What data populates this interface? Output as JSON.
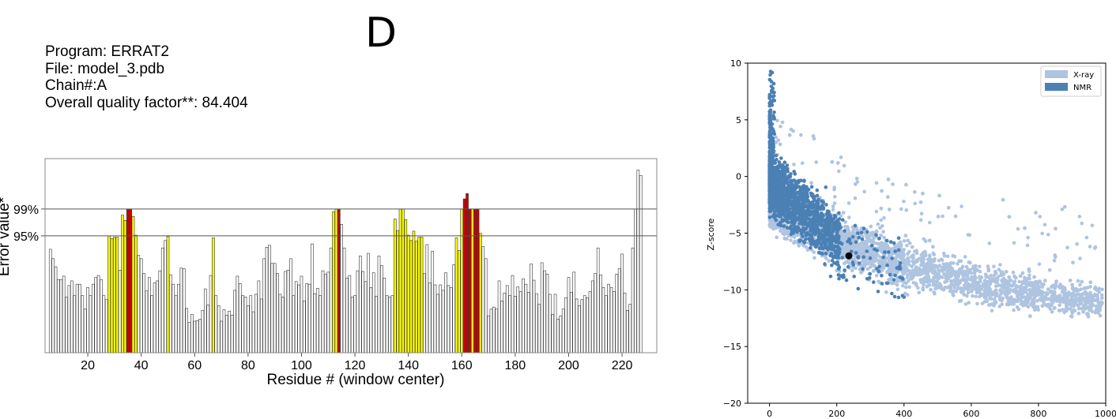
{
  "panel_label": "D",
  "info": {
    "program": "Program: ERRAT2",
    "file": "File: model_3.pdb",
    "chain": "Chain#:A",
    "quality": "Overall quality factor**: 84.404"
  },
  "colors": {
    "white_bar": "#ffffff",
    "yellow_bar": "#ffff00",
    "red_bar": "#cc0000",
    "xray": "#aec4e1",
    "nmr": "#4a80b4",
    "point": "#000000"
  },
  "chart_data": [
    {
      "type": "bar",
      "xlabel": "Residue # (window center)",
      "ylabel": "Error value*",
      "x_ticks": [
        20,
        40,
        60,
        80,
        100,
        120,
        140,
        160,
        180,
        200,
        220
      ],
      "xlim": [
        4,
        233
      ],
      "y_ticks": [
        {
          "label": "95%",
          "value": 95
        },
        {
          "label": "99%",
          "value": 99
        }
      ],
      "ylim": [
        77.6,
        106.5
      ],
      "reference_lines": [
        95,
        99
      ],
      "categories_start": 6,
      "values": [
        93.0,
        91.6,
        90.4,
        88.5,
        88.5,
        89.0,
        85.9,
        87.6,
        88.3,
        86.1,
        87.8,
        87.8,
        86.1,
        84.1,
        87.3,
        86.1,
        87.8,
        88.8,
        89.1,
        88.5,
        86.1,
        85.5,
        95.0,
        94.6,
        94.8,
        94.8,
        89.9,
        98.1,
        97.3,
        99.0,
        99.0,
        97.9,
        95.1,
        92.1,
        91.6,
        89.4,
        86.8,
        88.8,
        86.1,
        88.0,
        88.3,
        89.8,
        93.2,
        94.3,
        94.9,
        89.2,
        87.8,
        86.1,
        87.8,
        90.2,
        90.1,
        84.2,
        82.1,
        83.3,
        82.3,
        82.4,
        82.6,
        83.9,
        87.1,
        84.7,
        89.1,
        94.7,
        86.1,
        84.6,
        82.3,
        84.0,
        83.2,
        83.8,
        83.2,
        86.9,
        89.0,
        87.9,
        86.1,
        85.9,
        84.6,
        86.1,
        83.7,
        86.3,
        88.3,
        85.6,
        91.6,
        93.3,
        93.6,
        90.9,
        90.9,
        89.4,
        86.3,
        85.9,
        89.7,
        89.9,
        91.6,
        86.1,
        88.2,
        87.7,
        89.0,
        85.3,
        87.9,
        87.8,
        93.8,
        86.4,
        87.2,
        86.1,
        89.8,
        89.3,
        89.6,
        93.2,
        98.6,
        99.0,
        99.0,
        96.7,
        93.2,
        88.7,
        89.1,
        85.9,
        86.1,
        89.8,
        92.0,
        89.7,
        88.2,
        92.4,
        87.3,
        89.5,
        86.0,
        92.0,
        90.6,
        88.7,
        86.1,
        85.9,
        86.1,
        97.5,
        95.8,
        99.0,
        99.0,
        97.4,
        95.1,
        94.3,
        95.7,
        94.2,
        94.8,
        94.8,
        89.4,
        93.7,
        88.0,
        92.7,
        87.7,
        86.3,
        87.7,
        86.9,
        89.5,
        87.6,
        87.3,
        90.7,
        94.7,
        92.8,
        99.0,
        100.5,
        101.3,
        99.0,
        99.0,
        99.0,
        99.0,
        95.4,
        93.4,
        91.6,
        83.1,
        84.1,
        84.4,
        84.1,
        88.3,
        85.3,
        86.5,
        87.6,
        86.1,
        89.1,
        86.0,
        87.4,
        86.7,
        88.6,
        87.8,
        86.6,
        90.8,
        88.4,
        86.4,
        84.8,
        91.0,
        89.8,
        89.3,
        86.3,
        83.3,
        86.3,
        82.6,
        83.1,
        84.1,
        85.8,
        88.8,
        86.6,
        89.6,
        85.6,
        84.6,
        85.5,
        86.1,
        85.8,
        86.7,
        88.3,
        89.4,
        93.2,
        89.2,
        87.3,
        86.1,
        87.8,
        87.3,
        86.7,
        89.3,
        90.1,
        92.3,
        86.5,
        83.9,
        84.8,
        93.2,
        99.0,
        104.8,
        104.0
      ],
      "value_colors": [
        "w",
        "w",
        "w",
        "w",
        "w",
        "w",
        "w",
        "w",
        "w",
        "w",
        "w",
        "w",
        "w",
        "w",
        "w",
        "w",
        "w",
        "w",
        "w",
        "w",
        "w",
        "w",
        "y",
        "y",
        "y",
        "y",
        "w",
        "y",
        "y",
        "r",
        "r",
        "y",
        "y",
        "w",
        "w",
        "w",
        "w",
        "w",
        "w",
        "w",
        "w",
        "w",
        "w",
        "w",
        "y",
        "w",
        "w",
        "w",
        "w",
        "w",
        "w",
        "w",
        "w",
        "w",
        "w",
        "w",
        "w",
        "w",
        "w",
        "w",
        "w",
        "y",
        "w",
        "w",
        "w",
        "w",
        "w",
        "w",
        "w",
        "w",
        "w",
        "w",
        "w",
        "w",
        "w",
        "w",
        "w",
        "w",
        "w",
        "w",
        "w",
        "w",
        "w",
        "w",
        "w",
        "w",
        "w",
        "w",
        "w",
        "w",
        "w",
        "w",
        "w",
        "w",
        "w",
        "w",
        "w",
        "w",
        "w",
        "w",
        "w",
        "w",
        "w",
        "w",
        "w",
        "w",
        "y",
        "y",
        "r",
        "w",
        "w",
        "w",
        "w",
        "w",
        "w",
        "w",
        "w",
        "w",
        "w",
        "w",
        "w",
        "w",
        "w",
        "w",
        "w",
        "w",
        "w",
        "w",
        "w",
        "y",
        "y",
        "y",
        "y",
        "y",
        "y",
        "y",
        "y",
        "y",
        "y",
        "y",
        "w",
        "w",
        "w",
        "w",
        "w",
        "w",
        "w",
        "w",
        "w",
        "w",
        "w",
        "w",
        "y",
        "y",
        "y",
        "r",
        "r",
        "r",
        "y",
        "r",
        "r",
        "y",
        "w",
        "w",
        "w",
        "w",
        "w",
        "w",
        "w",
        "w",
        "w",
        "w",
        "w",
        "w",
        "w",
        "w",
        "w",
        "w",
        "w",
        "w",
        "w",
        "w",
        "w",
        "w",
        "w",
        "w",
        "w",
        "w",
        "w",
        "w",
        "w",
        "w",
        "w",
        "w",
        "w",
        "w",
        "w",
        "w",
        "w",
        "w",
        "w",
        "w",
        "w",
        "w",
        "w",
        "w",
        "w",
        "w",
        "w",
        "w",
        "w",
        "w",
        "w",
        "w",
        "w",
        "w",
        "w",
        "w",
        "w",
        "w",
        "w",
        "w",
        "y",
        "r",
        "r"
      ]
    },
    {
      "type": "scatter",
      "xlabel": "",
      "ylabel": "Z-score",
      "x_ticks": [
        0,
        200,
        400,
        600,
        800,
        1000
      ],
      "y_ticks": [
        10,
        5,
        0,
        -5,
        -10,
        -15,
        -20
      ],
      "xlim": [
        -65,
        1000
      ],
      "ylim": [
        -20,
        10
      ],
      "legend": [
        "X-ray",
        "NMR"
      ],
      "legend_position": "top-right",
      "highlight_point": {
        "x": 236,
        "y": -7.0
      }
    }
  ]
}
